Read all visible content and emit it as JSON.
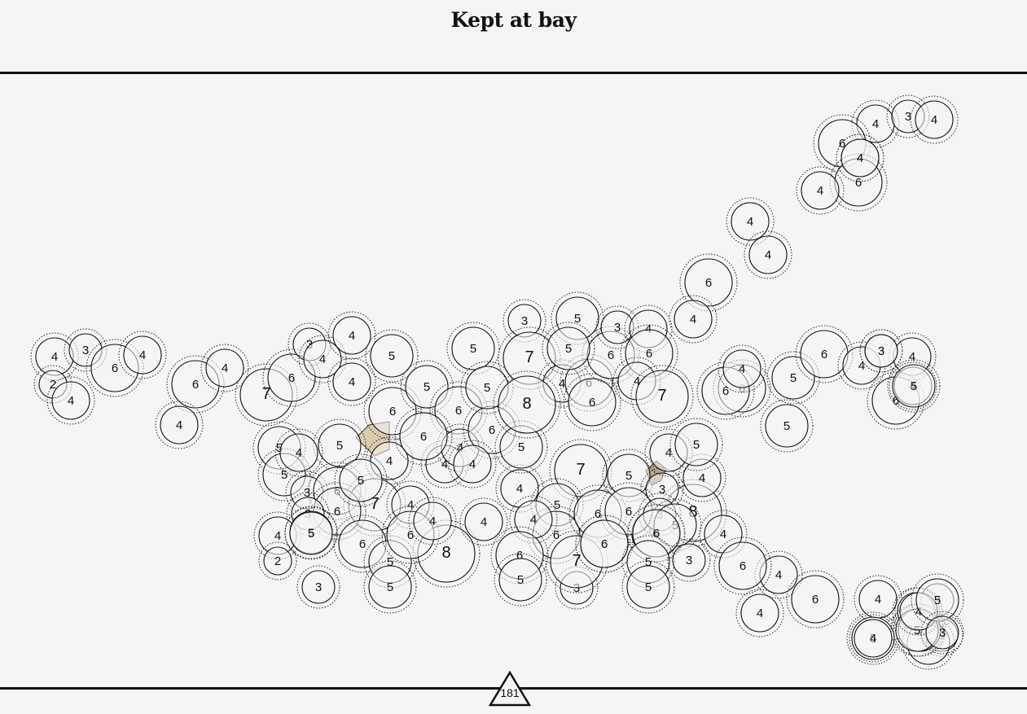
{
  "title": "Kept at bay",
  "level": "181",
  "colors": {
    "background": "#f6f4f5",
    "ink": "#111111",
    "region": "#d9ccae"
  },
  "circles": [
    "4",
    "3",
    "6",
    "4",
    "2",
    "4",
    "6",
    "4",
    "4",
    "7",
    "6",
    "3",
    "4",
    "4",
    "5",
    "4",
    "5",
    "6",
    "5",
    "5",
    "4",
    "5",
    "5",
    "4",
    "3",
    "6",
    "4",
    "7",
    "4",
    "6",
    "3",
    "4",
    "5",
    "6",
    "8",
    "5",
    "6",
    "4",
    "4",
    "4",
    "5",
    "6",
    "4",
    "6",
    "6",
    "4",
    "5",
    "3",
    "7",
    "5",
    "4",
    "3",
    "6",
    "6",
    "7",
    "5",
    "6",
    "3",
    "5",
    "5",
    "6",
    "3",
    "5",
    "5",
    "8",
    "4",
    "6",
    "5",
    "4",
    "6",
    "4",
    "5",
    "7",
    "8",
    "6",
    "4",
    "3",
    "7",
    "6",
    "4",
    "6",
    "6",
    "6",
    "3",
    "4",
    "5",
    "5",
    "6",
    "6",
    "6",
    "4",
    "4",
    "6",
    "5",
    "5",
    "4",
    "5",
    "4",
    "5",
    "3",
    "4",
    "6",
    "4",
    "6",
    "4",
    "3",
    "3",
    "4",
    "6",
    "4",
    "6",
    "4",
    "4",
    "6",
    "6",
    "4",
    "4",
    "3",
    "3",
    "5",
    "4",
    "5",
    "5",
    "4",
    "2",
    "5",
    "4",
    "5",
    "4",
    "4",
    "5",
    "3",
    "3"
  ]
}
